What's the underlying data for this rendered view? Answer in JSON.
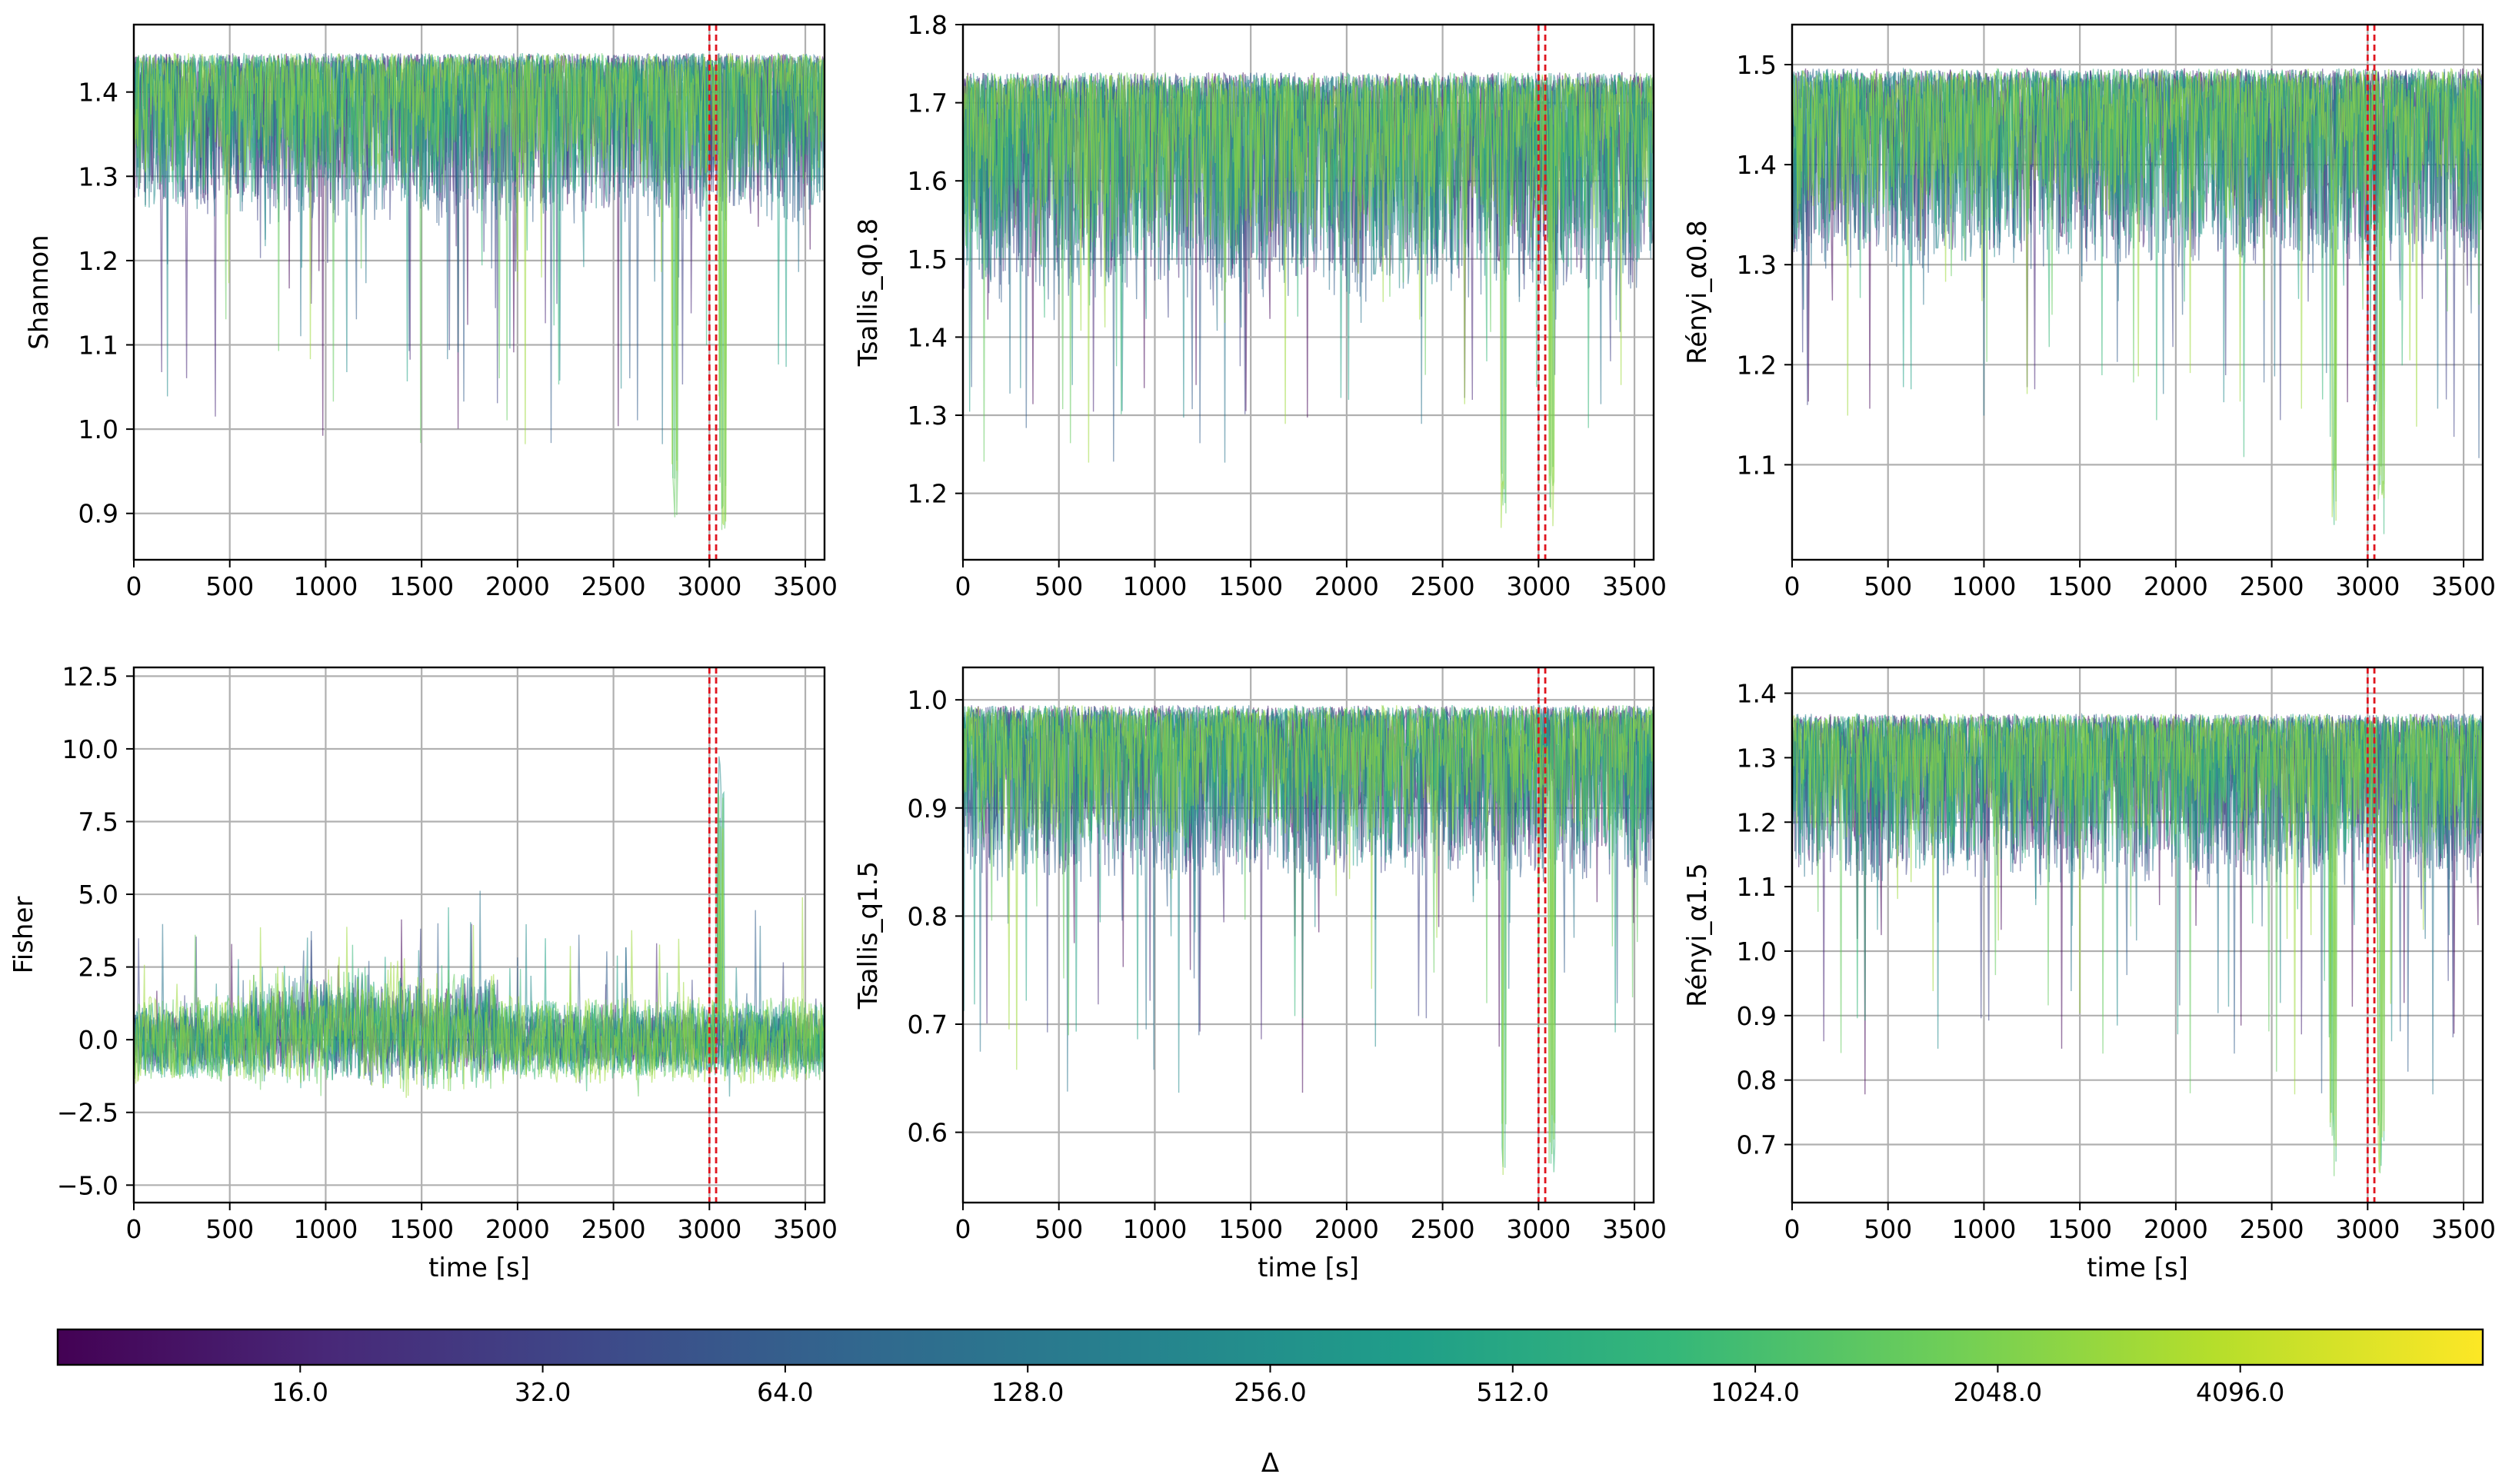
{
  "chart_data": [
    {
      "type": "line",
      "panel": "top-left",
      "ylabel": "Shannon",
      "xlabel": "",
      "xlim": [
        0,
        3600
      ],
      "ylim": [
        0.845,
        1.48
      ],
      "xticks": [
        0,
        500,
        1000,
        1500,
        2000,
        2500,
        3000,
        3500
      ],
      "yticks": [
        0.9,
        1.0,
        1.1,
        1.2,
        1.3,
        1.4
      ],
      "ytick_labels": [
        "0.9",
        "1.0",
        "1.1",
        "1.2",
        "1.3",
        "1.4"
      ],
      "vlines": [
        3000,
        3035
      ],
      "series_summary": {
        "upper": 1.44,
        "band_low": 1.28,
        "min_tail": 0.88,
        "direction": "down"
      }
    },
    {
      "type": "line",
      "panel": "top-middle",
      "ylabel": "Tsallis_q0.8",
      "xlabel": "",
      "xlim": [
        0,
        3600
      ],
      "ylim": [
        1.115,
        1.8
      ],
      "xticks": [
        0,
        500,
        1000,
        1500,
        2000,
        2500,
        3000,
        3500
      ],
      "yticks": [
        1.2,
        1.3,
        1.4,
        1.5,
        1.6,
        1.7,
        1.8
      ],
      "ytick_labels": [
        "1.2",
        "1.3",
        "1.4",
        "1.5",
        "1.6",
        "1.7",
        "1.8"
      ],
      "vlines": [
        3000,
        3035
      ],
      "series_summary": {
        "upper": 1.73,
        "band_low": 1.5,
        "min_tail": 1.15,
        "direction": "down"
      }
    },
    {
      "type": "line",
      "panel": "top-right",
      "ylabel": "Rényi_α0.8",
      "xlabel": "",
      "xlim": [
        0,
        3600
      ],
      "ylim": [
        1.005,
        1.54
      ],
      "xticks": [
        0,
        500,
        1000,
        1500,
        2000,
        2500,
        3000,
        3500
      ],
      "yticks": [
        1.1,
        1.2,
        1.3,
        1.4,
        1.5
      ],
      "ytick_labels": [
        "1.1",
        "1.2",
        "1.3",
        "1.4",
        "1.5"
      ],
      "vlines": [
        3000,
        3035
      ],
      "series_summary": {
        "upper": 1.49,
        "band_low": 1.33,
        "min_tail": 1.03,
        "direction": "down"
      }
    },
    {
      "type": "line",
      "panel": "bottom-left",
      "ylabel": "Fisher",
      "xlabel": "time [s]",
      "xlim": [
        0,
        3600
      ],
      "ylim": [
        -5.6,
        12.8
      ],
      "xticks": [
        0,
        500,
        1000,
        1500,
        2000,
        2500,
        3000,
        3500
      ],
      "yticks": [
        -5.0,
        -2.5,
        0.0,
        2.5,
        5.0,
        7.5,
        10.0,
        12.5
      ],
      "ytick_labels": [
        "−5.0",
        "−2.5",
        "0.0",
        "2.5",
        "5.0",
        "7.5",
        "10.0",
        "12.5"
      ],
      "vlines": [
        3000,
        3035
      ],
      "series_summary": {
        "center": 0.0,
        "spread": 1.3,
        "max_spike": 10.0,
        "direction": "up"
      }
    },
    {
      "type": "line",
      "panel": "bottom-middle",
      "ylabel": "Tsallis_q1.5",
      "xlabel": "time [s]",
      "xlim": [
        0,
        3600
      ],
      "ylim": [
        0.535,
        1.03
      ],
      "xticks": [
        0,
        500,
        1000,
        1500,
        2000,
        2500,
        3000,
        3500
      ],
      "yticks": [
        0.6,
        0.7,
        0.8,
        0.9,
        1.0
      ],
      "ytick_labels": [
        "0.6",
        "0.7",
        "0.8",
        "0.9",
        "1.0"
      ],
      "vlines": [
        3000,
        3035
      ],
      "series_summary": {
        "upper": 0.99,
        "band_low": 0.86,
        "min_tail": 0.56,
        "direction": "down"
      }
    },
    {
      "type": "line",
      "panel": "bottom-right",
      "ylabel": "Rényi_α1.5",
      "xlabel": "time [s]",
      "xlim": [
        0,
        3600
      ],
      "ylim": [
        0.61,
        1.44
      ],
      "xticks": [
        0,
        500,
        1000,
        1500,
        2000,
        2500,
        3000,
        3500
      ],
      "yticks": [
        0.7,
        0.8,
        0.9,
        1.0,
        1.1,
        1.2,
        1.3,
        1.4
      ],
      "ytick_labels": [
        "0.7",
        "0.8",
        "0.9",
        "1.0",
        "1.1",
        "1.2",
        "1.3",
        "1.4"
      ],
      "vlines": [
        3000,
        3035
      ],
      "series_summary": {
        "upper": 1.36,
        "band_low": 1.15,
        "min_tail": 0.65,
        "direction": "down"
      }
    }
  ],
  "colorbar": {
    "label": "Δ",
    "colormap": "viridis",
    "scale": "log2",
    "range": [
      8,
      8192
    ],
    "ticks": [
      16,
      32,
      64,
      128,
      256,
      512,
      1024,
      2048,
      4096
    ],
    "tick_labels": [
      "16.0",
      "32.0",
      "64.0",
      "128.0",
      "256.0",
      "512.0",
      "1024.0",
      "2048.0",
      "4096.0"
    ]
  },
  "colors": {
    "vline": "#e0151f",
    "grid": "#b0b0b0",
    "viridis": [
      "#440154",
      "#482878",
      "#3e4989",
      "#31688e",
      "#26828e",
      "#1f9e89",
      "#35b779",
      "#6ece58",
      "#b5de2b",
      "#fde725"
    ]
  }
}
